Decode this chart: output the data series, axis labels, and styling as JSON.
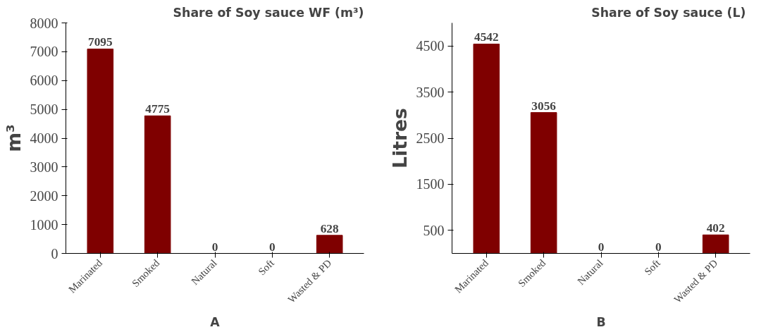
{
  "chart_data": [
    {
      "type": "bar",
      "title": "Share of Soy sauce WF (m³)",
      "ylabel": "m³",
      "xlabel": "A",
      "categories": [
        "Marinated",
        "Smoked",
        "Natural",
        "Soft",
        "Wasted & PD"
      ],
      "values": [
        7095,
        4775,
        0,
        0,
        628
      ],
      "color": "#7f0000",
      "ylim": [
        0,
        8000
      ],
      "yticks": [
        0,
        1000,
        2000,
        3000,
        4000,
        5000,
        6000,
        7000,
        8000
      ],
      "grid": false,
      "data_labels": true
    },
    {
      "type": "bar",
      "title": "Share of Soy sauce  (L)",
      "ylabel": "Litres",
      "xlabel": "B",
      "categories": [
        "Marinated",
        "Smoked",
        "Natural",
        "Soft",
        "Wasted & PD"
      ],
      "values": [
        4542,
        3056,
        0,
        0,
        402
      ],
      "color": "#7f0000",
      "ylim": [
        0,
        5000
      ],
      "yticks": [
        500,
        1500,
        2500,
        3500,
        4500
      ],
      "grid": false,
      "data_labels": true
    }
  ]
}
